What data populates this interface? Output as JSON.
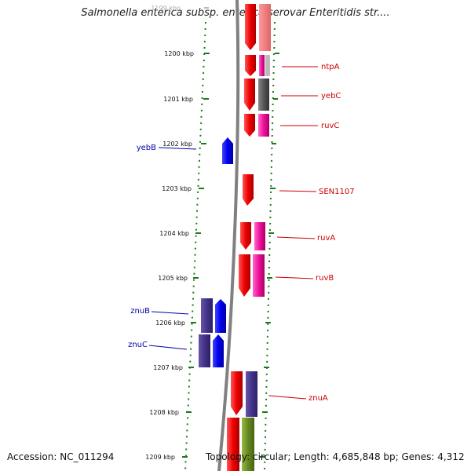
{
  "title": "Salmonella enterica subsp. enterica serovar Enteritidis str....",
  "footer": {
    "accession": "Accession: NC_011294",
    "stats": "Topology: circular; Length: 4,685,848 bp; Genes: 4,312"
  },
  "colors": {
    "forward_gene_label": "#cc0000",
    "reverse_gene_label": "#0000aa",
    "tick": "#1a7a1a",
    "backbone": "#808080"
  },
  "ticks": [
    {
      "kbp": 1199,
      "label": "1199 kbp"
    },
    {
      "kbp": 1200,
      "label": "1200 kbp"
    },
    {
      "kbp": 1201,
      "label": "1201 kbp"
    },
    {
      "kbp": 1202,
      "label": "1202 kbp"
    },
    {
      "kbp": 1203,
      "label": "1203 kbp"
    },
    {
      "kbp": 1204,
      "label": "1204 kbp"
    },
    {
      "kbp": 1205,
      "label": "1205 kbp"
    },
    {
      "kbp": 1206,
      "label": "1206 kbp"
    },
    {
      "kbp": 1207,
      "label": "1207 kbp"
    },
    {
      "kbp": 1208,
      "label": "1208 kbp"
    },
    {
      "kbp": 1209,
      "label": "1209 kbp"
    }
  ],
  "forward_genes": [
    {
      "name": "ntpA",
      "color_a": "#ee0000",
      "color_b": "#ff33aa"
    },
    {
      "name": "yebC",
      "color_a": "#ee0000",
      "color_b": "#555555"
    },
    {
      "name": "ruvC",
      "color_a": "#ee0000",
      "color_b": "#ee1199"
    },
    {
      "name": "SEN1107",
      "color_a": "#ee0000",
      "color_b": ""
    },
    {
      "name": "ruvA",
      "color_a": "#ee0000",
      "color_b": "#ee1199"
    },
    {
      "name": "ruvB",
      "color_a": "#ee0000",
      "color_b": "#ee1199"
    },
    {
      "name": "znuA",
      "color_a": "#ee0000",
      "color_b": "#443388"
    }
  ],
  "reverse_genes": [
    {
      "name": "yebB",
      "color_a": "#0000dd",
      "color_b": ""
    },
    {
      "name": "znuB",
      "color_a": "#0000ee",
      "color_b": "#443388"
    },
    {
      "name": "znuC",
      "color_a": "#0000ee",
      "color_b": "#443388"
    }
  ]
}
